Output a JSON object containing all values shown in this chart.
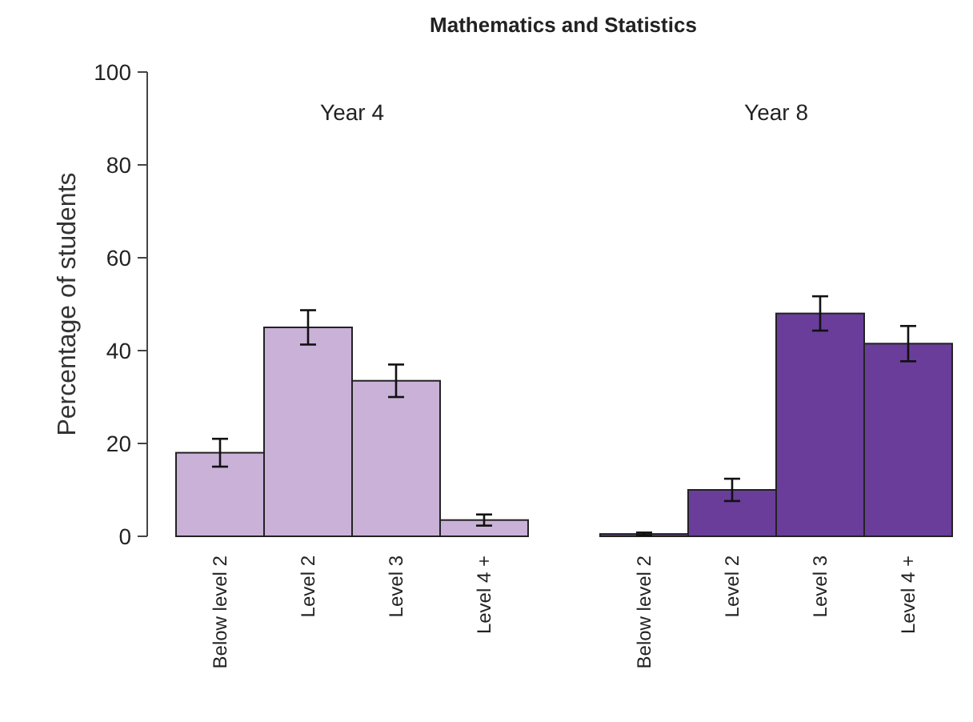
{
  "chart_data": [
    {
      "type": "bar",
      "title": "Mathematics and Statistics",
      "subtitle": "Year 4",
      "ylabel": "Percentage of students",
      "categories": [
        "Below level 2",
        "Level 2",
        "Level 3",
        "Level 4 +"
      ],
      "values": [
        18,
        45,
        33.5,
        3.5
      ],
      "errors": [
        3,
        3.7,
        3.5,
        1.2
      ],
      "color": "#c9b1d8",
      "ylim": [
        0,
        100
      ],
      "yticks": [
        0,
        20,
        40,
        60,
        80,
        100
      ],
      "grid": false
    },
    {
      "type": "bar",
      "subtitle": "Year 8",
      "categories": [
        "Below level 2",
        "Level 2",
        "Level 3",
        "Level 4 +"
      ],
      "values": [
        0.5,
        10,
        48,
        41.5
      ],
      "errors": [
        0.3,
        2.4,
        3.7,
        3.8
      ],
      "color": "#6a3d9a",
      "ylim": [
        0,
        100
      ],
      "tick_labels": "x",
      "grid": false
    }
  ]
}
